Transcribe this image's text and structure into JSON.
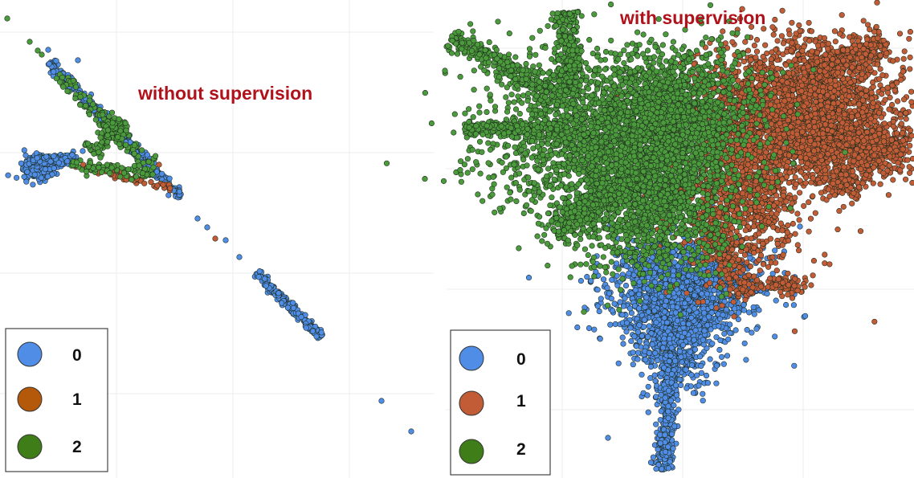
{
  "chart_data": [
    {
      "type": "scatter",
      "title": "without supervision",
      "xlabel": "",
      "ylabel": "",
      "grid": true,
      "legend": {
        "placement": "bottom-left",
        "entries": [
          "0",
          "1",
          "2"
        ]
      },
      "series": [
        {
          "name": "0",
          "color": "#4f8de6",
          "clusters": [
            {
              "kind": "blob",
              "cx": 50,
              "cy": 208,
              "spread": [
                10,
                7
              ],
              "n": 260
            },
            {
              "kind": "line",
              "from": [
                40,
                198
              ],
              "to": [
                95,
                198
              ],
              "width": 3,
              "n": 120
            },
            {
              "kind": "line",
              "from": [
                62,
                78
              ],
              "to": [
                225,
                245
              ],
              "width": 3,
              "n": 420
            },
            {
              "kind": "line",
              "from": [
                320,
                340
              ],
              "to": [
                400,
                420
              ],
              "width": 2.5,
              "n": 220
            },
            {
              "kind": "points",
              "pts": [
                [
                  60,
                  62
                ],
                [
                  97,
                  75
                ],
                [
                  246,
                  272
                ],
                [
                  258,
                  283
                ],
                [
                  281,
                  299
                ],
                [
                  298,
                  320
                ],
                [
                  475,
                  499
                ],
                [
                  512,
                  537
                ],
                [
                  103,
                  188
                ]
              ]
            }
          ]
        },
        {
          "name": "1",
          "color": "#c25c36",
          "clusters": [
            {
              "kind": "line",
              "from": [
                92,
                205
              ],
              "to": [
                215,
                235
              ],
              "width": 2.5,
              "n": 55
            },
            {
              "kind": "points",
              "pts": [
                [
                  268,
                  297
                ],
                [
                  203,
                  230
                ],
                [
                  198,
                  205
                ]
              ]
            }
          ]
        },
        {
          "name": "2",
          "color": "#4b9a3c",
          "clusters": [
            {
              "kind": "line",
              "from": [
                72,
                95
              ],
              "to": [
                190,
                215
              ],
              "width": 6,
              "n": 120
            },
            {
              "kind": "line",
              "from": [
                88,
                205
              ],
              "to": [
                190,
                218
              ],
              "width": 4,
              "n": 80
            },
            {
              "kind": "line",
              "from": [
                115,
                190
              ],
              "to": [
                155,
                150
              ],
              "width": 7,
              "n": 90
            },
            {
              "kind": "points",
              "pts": [
                [
                  9,
                  23
                ],
                [
                  37,
                  52
                ],
                [
                  47,
                  63
                ],
                [
                  52,
                  68
                ]
              ]
            }
          ]
        }
      ]
    },
    {
      "type": "scatter",
      "title": "with supervision",
      "xlabel": "",
      "ylabel": "",
      "grid": true,
      "legend": {
        "placement": "bottom-left",
        "entries": [
          "0",
          "1",
          "2"
        ]
      },
      "series": [
        {
          "name": "0",
          "color": "#4f8de6",
          "clusters": [
            {
              "kind": "blob",
              "cx": 850,
              "cy": 360,
              "spread": [
                48,
                32
              ],
              "n": 1300
            },
            {
              "kind": "blob",
              "cx": 840,
              "cy": 420,
              "spread": [
                25,
                35
              ],
              "n": 650
            },
            {
              "kind": "line",
              "from": [
                835,
                440
              ],
              "to": [
                828,
                585
              ],
              "width": 6,
              "n": 320
            },
            {
              "kind": "points",
              "pts": [
                [
                  757,
                  545
                ],
                [
                  776,
                  428
                ],
                [
                  806,
                  492
                ],
                [
                  900,
                  392
                ],
                [
                  915,
                  375
                ],
                [
                  996,
                  282
                ],
                [
                  870,
                  480
                ]
              ]
            }
          ]
        },
        {
          "name": "1",
          "color": "#c25c36",
          "clusters": [
            {
              "kind": "blob",
              "cx": 1000,
              "cy": 130,
              "spread": [
                65,
                40
              ],
              "n": 2100
            },
            {
              "kind": "blob",
              "cx": 920,
              "cy": 230,
              "spread": [
                42,
                55
              ],
              "n": 1200
            },
            {
              "kind": "blob",
              "cx": 1060,
              "cy": 190,
              "spread": [
                45,
                22
              ],
              "n": 600
            },
            {
              "kind": "line",
              "from": [
                990,
                180
              ],
              "to": [
                1128,
                180
              ],
              "width": 8,
              "n": 300
            },
            {
              "kind": "line",
              "from": [
                1000,
                100
              ],
              "to": [
                1103,
                52
              ],
              "width": 10,
              "n": 300
            },
            {
              "kind": "line",
              "from": [
                880,
                280
              ],
              "to": [
                930,
                370
              ],
              "width": 10,
              "n": 220
            },
            {
              "kind": "blob",
              "cx": 975,
              "cy": 355,
              "spread": [
                12,
                5
              ],
              "n": 70
            },
            {
              "kind": "blob",
              "cx": 1050,
              "cy": 230,
              "spread": [
                14,
                8
              ],
              "n": 80
            }
          ]
        },
        {
          "name": "2",
          "color": "#4b9a3c",
          "clusters": [
            {
              "kind": "blob",
              "cx": 765,
              "cy": 170,
              "spread": [
                75,
                52
              ],
              "n": 2300
            },
            {
              "kind": "blob",
              "cx": 810,
              "cy": 250,
              "spread": [
                52,
                48
              ],
              "n": 1200
            },
            {
              "kind": "blob",
              "cx": 850,
              "cy": 130,
              "spread": [
                45,
                35
              ],
              "n": 700
            },
            {
              "kind": "line",
              "from": [
                560,
                48
              ],
              "to": [
                700,
                120
              ],
              "width": 8,
              "n": 300
            },
            {
              "kind": "line",
              "from": [
                578,
                160
              ],
              "to": [
                700,
                160
              ],
              "width": 5,
              "n": 220
            },
            {
              "kind": "line",
              "from": [
                705,
                15
              ],
              "to": [
                712,
                120
              ],
              "width": 9,
              "n": 260
            },
            {
              "kind": "line",
              "from": [
                690,
                290
              ],
              "to": [
                745,
                250
              ],
              "width": 9,
              "n": 180
            },
            {
              "kind": "points",
              "pts": [
                [
                  748,
                  75
                ],
                [
                  775,
                  347
                ],
                [
                  772,
                  90
                ],
                [
                  840,
                  305
                ]
              ]
            }
          ]
        }
      ]
    }
  ]
}
